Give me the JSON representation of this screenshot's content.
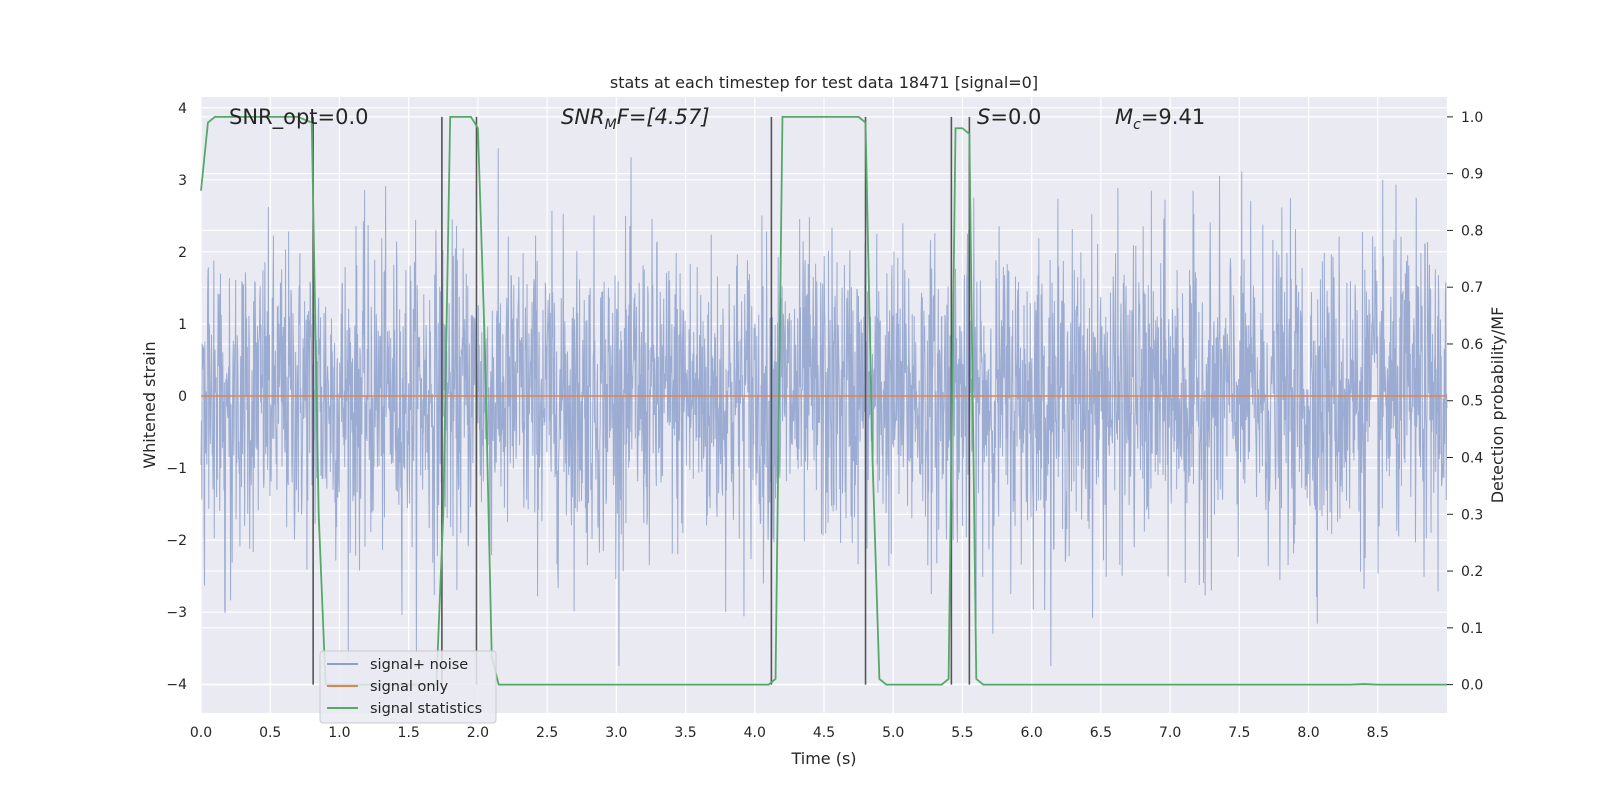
{
  "chart_data": {
    "type": "line",
    "title": "stats at each timestep for test data 18471 [signal=0]",
    "xlabel": "Time (s)",
    "ylabel": "Whitened strain",
    "ylabel_right": "Detection probability/MF",
    "xlim": [
      0.0,
      9.0
    ],
    "ylim": [
      -4.4,
      4.15
    ],
    "ylim_right": [
      -0.05,
      1.035
    ],
    "xticks": [
      "0.0",
      "0.5",
      "1.0",
      "1.5",
      "2.0",
      "2.5",
      "3.0",
      "3.5",
      "4.0",
      "4.5",
      "5.0",
      "5.5",
      "6.0",
      "6.5",
      "7.0",
      "7.5",
      "8.0",
      "8.5"
    ],
    "yticks": [
      "4",
      "3",
      "2",
      "1",
      "0",
      "−1",
      "−2",
      "−3",
      "−4"
    ],
    "yticks_right": [
      "1.0",
      "0.9",
      "0.8",
      "0.7",
      "0.6",
      "0.5",
      "0.4",
      "0.3",
      "0.2",
      "0.1",
      "0.0"
    ],
    "grid": true,
    "legend_position": "lower-left",
    "annotations": {
      "snr_opt": "SNR_opt=0.0",
      "snr_mf_label": "SNR",
      "snr_mf_sub": "M",
      "snr_mf_rest": "F=[4.57]",
      "s_label": "S",
      "s_rest": "=0.0",
      "mc_label": "M",
      "mc_sub": "c",
      "mc_rest": "=9.41"
    },
    "series": [
      {
        "name": "signal+ noise",
        "color": "#8da0cb",
        "description_values": "whitened noise, amplitude mostly within ±2.5, peaks near ±3.5"
      },
      {
        "name": "signal only",
        "color": "#dd8452",
        "x": [
          0.0,
          9.0
        ],
        "y": [
          0.0,
          0.0
        ]
      },
      {
        "name": "signal statistics",
        "color": "#55a868",
        "axis": "right",
        "x": [
          0.0,
          0.05,
          0.1,
          0.7,
          0.8,
          0.85,
          0.9,
          1.7,
          1.75,
          1.8,
          1.85,
          1.95,
          2.0,
          2.05,
          2.1,
          2.15,
          2.2,
          4.1,
          4.15,
          4.2,
          4.25,
          4.75,
          4.8,
          4.85,
          4.9,
          4.95,
          5.35,
          5.4,
          5.45,
          5.5,
          5.55,
          5.6,
          5.65,
          5.7,
          8.3,
          8.4,
          8.5,
          9.0
        ],
        "y": [
          0.87,
          0.99,
          1.0,
          1.0,
          0.99,
          0.3,
          0.0,
          0.0,
          0.3,
          1.0,
          1.0,
          1.0,
          0.98,
          0.6,
          0.05,
          0.0,
          0.0,
          0.0,
          0.01,
          1.0,
          1.0,
          1.0,
          0.99,
          0.4,
          0.01,
          0.0,
          0.0,
          0.01,
          0.98,
          0.98,
          0.97,
          0.01,
          0.0,
          0.0,
          0.0,
          0.001,
          0.0,
          0.0
        ]
      }
    ],
    "vertical_lines_x": [
      0.81,
      1.74,
      1.99,
      4.12,
      4.8,
      5.42,
      5.55
    ]
  }
}
